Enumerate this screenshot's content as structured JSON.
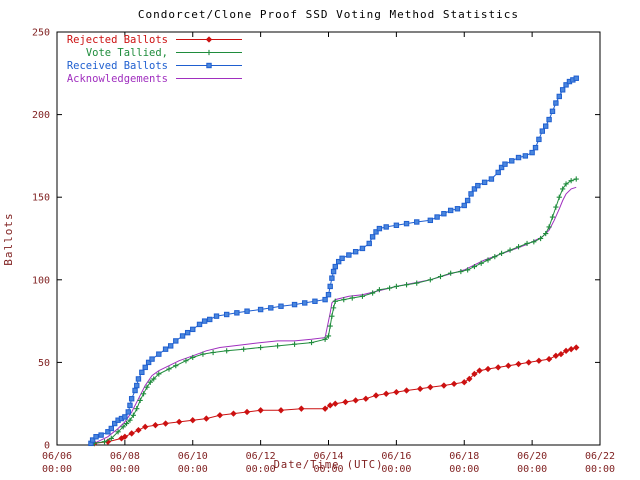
{
  "colors": {
    "axis": "#000000",
    "tick_label": "#7f1f1f",
    "background": "#ffffff"
  },
  "chart_data": {
    "type": "line",
    "title": "Condorcet/Clone Proof SSD Voting Method Statistics",
    "xlabel": "Date/Time (UTC)",
    "ylabel": "Ballots",
    "grid": false,
    "legend_position": "top-left",
    "xlim": [
      6,
      22
    ],
    "ylim": [
      0,
      250
    ],
    "x_unit": "day-of-june",
    "xticks": [
      {
        "value": 6,
        "label": "06/06",
        "sub": "00:00"
      },
      {
        "value": 8,
        "label": "06/08",
        "sub": "00:00"
      },
      {
        "value": 10,
        "label": "06/10",
        "sub": "00:00"
      },
      {
        "value": 12,
        "label": "06/12",
        "sub": "00:00"
      },
      {
        "value": 14,
        "label": "06/14",
        "sub": "00:00"
      },
      {
        "value": 16,
        "label": "06/16",
        "sub": "00:00"
      },
      {
        "value": 18,
        "label": "06/18",
        "sub": "00:00"
      },
      {
        "value": 20,
        "label": "06/20",
        "sub": "00:00"
      },
      {
        "value": 22,
        "label": "06/22",
        "sub": "00:00"
      }
    ],
    "yticks": [
      0,
      50,
      100,
      150,
      200,
      250
    ],
    "series": [
      {
        "name": "Rejected Ballots",
        "color": "#cc1111",
        "marker": "diamond",
        "marker_fill": "#cc1111",
        "points": [
          [
            7.1,
            1
          ],
          [
            7.5,
            2
          ],
          [
            7.9,
            4
          ],
          [
            8.0,
            5
          ],
          [
            8.2,
            7
          ],
          [
            8.4,
            9
          ],
          [
            8.6,
            11
          ],
          [
            8.9,
            12
          ],
          [
            9.2,
            13
          ],
          [
            9.6,
            14
          ],
          [
            10.0,
            15
          ],
          [
            10.4,
            16
          ],
          [
            10.8,
            18
          ],
          [
            11.2,
            19
          ],
          [
            11.6,
            20
          ],
          [
            12.0,
            21
          ],
          [
            12.6,
            21
          ],
          [
            13.2,
            22
          ],
          [
            13.9,
            22
          ],
          [
            14.05,
            24
          ],
          [
            14.2,
            25
          ],
          [
            14.5,
            26
          ],
          [
            14.8,
            27
          ],
          [
            15.1,
            28
          ],
          [
            15.4,
            30
          ],
          [
            15.7,
            31
          ],
          [
            16.0,
            32
          ],
          [
            16.3,
            33
          ],
          [
            16.7,
            34
          ],
          [
            17.0,
            35
          ],
          [
            17.4,
            36
          ],
          [
            17.7,
            37
          ],
          [
            18.0,
            38
          ],
          [
            18.15,
            40
          ],
          [
            18.3,
            43
          ],
          [
            18.45,
            45
          ],
          [
            18.7,
            46
          ],
          [
            19.0,
            47
          ],
          [
            19.3,
            48
          ],
          [
            19.6,
            49
          ],
          [
            19.9,
            50
          ],
          [
            20.2,
            51
          ],
          [
            20.5,
            52
          ],
          [
            20.7,
            54
          ],
          [
            20.85,
            55
          ],
          [
            21.0,
            57
          ],
          [
            21.15,
            58
          ],
          [
            21.3,
            59
          ]
        ]
      },
      {
        "name": "Vote Tallied,",
        "color": "#1f8c3c",
        "marker": "plus",
        "marker_fill": "none",
        "points": [
          [
            7.1,
            1
          ],
          [
            7.4,
            2
          ],
          [
            7.6,
            4
          ],
          [
            7.8,
            8
          ],
          [
            7.95,
            11
          ],
          [
            8.05,
            13
          ],
          [
            8.15,
            15
          ],
          [
            8.25,
            18
          ],
          [
            8.35,
            22
          ],
          [
            8.45,
            27
          ],
          [
            8.55,
            31
          ],
          [
            8.65,
            35
          ],
          [
            8.75,
            38
          ],
          [
            8.85,
            40
          ],
          [
            9.0,
            43
          ],
          [
            9.3,
            46
          ],
          [
            9.5,
            48
          ],
          [
            9.8,
            51
          ],
          [
            10.0,
            53
          ],
          [
            10.3,
            55
          ],
          [
            10.6,
            56
          ],
          [
            11.0,
            57
          ],
          [
            11.5,
            58
          ],
          [
            12.0,
            59
          ],
          [
            12.5,
            60
          ],
          [
            13.0,
            61
          ],
          [
            13.5,
            62
          ],
          [
            13.9,
            64
          ],
          [
            14.0,
            66
          ],
          [
            14.05,
            72
          ],
          [
            14.1,
            78
          ],
          [
            14.15,
            83
          ],
          [
            14.2,
            87
          ],
          [
            14.45,
            88
          ],
          [
            14.7,
            89
          ],
          [
            15.0,
            90
          ],
          [
            15.3,
            92
          ],
          [
            15.5,
            94
          ],
          [
            15.8,
            95
          ],
          [
            16.0,
            96
          ],
          [
            16.3,
            97
          ],
          [
            16.6,
            98
          ],
          [
            17.0,
            100
          ],
          [
            17.3,
            102
          ],
          [
            17.6,
            104
          ],
          [
            17.9,
            105
          ],
          [
            18.1,
            106
          ],
          [
            18.3,
            108
          ],
          [
            18.5,
            110
          ],
          [
            18.7,
            112
          ],
          [
            18.9,
            114
          ],
          [
            19.1,
            116
          ],
          [
            19.35,
            118
          ],
          [
            19.6,
            120
          ],
          [
            19.85,
            122
          ],
          [
            20.05,
            123
          ],
          [
            20.25,
            125
          ],
          [
            20.4,
            128
          ],
          [
            20.5,
            132
          ],
          [
            20.6,
            138
          ],
          [
            20.7,
            144
          ],
          [
            20.8,
            150
          ],
          [
            20.9,
            155
          ],
          [
            21.0,
            158
          ],
          [
            21.15,
            160
          ],
          [
            21.3,
            161
          ]
        ]
      },
      {
        "name": "Received Ballots",
        "color": "#1f5fd0",
        "marker": "square",
        "marker_fill": "#4a86dd",
        "points": [
          [
            7.0,
            1
          ],
          [
            7.05,
            3
          ],
          [
            7.15,
            5
          ],
          [
            7.3,
            6
          ],
          [
            7.5,
            8
          ],
          [
            7.6,
            10
          ],
          [
            7.7,
            13
          ],
          [
            7.8,
            15
          ],
          [
            7.9,
            16
          ],
          [
            8.0,
            17
          ],
          [
            8.1,
            20
          ],
          [
            8.15,
            24
          ],
          [
            8.2,
            28
          ],
          [
            8.3,
            33
          ],
          [
            8.35,
            36
          ],
          [
            8.4,
            40
          ],
          [
            8.5,
            44
          ],
          [
            8.6,
            47
          ],
          [
            8.7,
            50
          ],
          [
            8.8,
            52
          ],
          [
            9.0,
            55
          ],
          [
            9.2,
            58
          ],
          [
            9.35,
            60
          ],
          [
            9.5,
            63
          ],
          [
            9.7,
            66
          ],
          [
            9.85,
            68
          ],
          [
            10.0,
            70
          ],
          [
            10.2,
            73
          ],
          [
            10.35,
            75
          ],
          [
            10.5,
            76
          ],
          [
            10.7,
            78
          ],
          [
            11.0,
            79
          ],
          [
            11.3,
            80
          ],
          [
            11.6,
            81
          ],
          [
            12.0,
            82
          ],
          [
            12.3,
            83
          ],
          [
            12.6,
            84
          ],
          [
            13.0,
            85
          ],
          [
            13.3,
            86
          ],
          [
            13.6,
            87
          ],
          [
            13.9,
            88
          ],
          [
            14.0,
            91
          ],
          [
            14.05,
            96
          ],
          [
            14.1,
            101
          ],
          [
            14.15,
            105
          ],
          [
            14.2,
            108
          ],
          [
            14.3,
            111
          ],
          [
            14.4,
            113
          ],
          [
            14.6,
            115
          ],
          [
            14.8,
            117
          ],
          [
            15.0,
            119
          ],
          [
            15.2,
            122
          ],
          [
            15.3,
            126
          ],
          [
            15.4,
            129
          ],
          [
            15.5,
            131
          ],
          [
            15.7,
            132
          ],
          [
            16.0,
            133
          ],
          [
            16.3,
            134
          ],
          [
            16.6,
            135
          ],
          [
            17.0,
            136
          ],
          [
            17.2,
            138
          ],
          [
            17.4,
            140
          ],
          [
            17.6,
            142
          ],
          [
            17.8,
            143
          ],
          [
            18.0,
            145
          ],
          [
            18.1,
            148
          ],
          [
            18.2,
            152
          ],
          [
            18.3,
            155
          ],
          [
            18.4,
            157
          ],
          [
            18.6,
            159
          ],
          [
            18.8,
            161
          ],
          [
            19.0,
            165
          ],
          [
            19.1,
            168
          ],
          [
            19.2,
            170
          ],
          [
            19.4,
            172
          ],
          [
            19.6,
            174
          ],
          [
            19.8,
            175
          ],
          [
            20.0,
            177
          ],
          [
            20.1,
            180
          ],
          [
            20.2,
            185
          ],
          [
            20.3,
            190
          ],
          [
            20.4,
            193
          ],
          [
            20.5,
            197
          ],
          [
            20.6,
            202
          ],
          [
            20.7,
            207
          ],
          [
            20.8,
            211
          ],
          [
            20.9,
            215
          ],
          [
            21.0,
            218
          ],
          [
            21.1,
            220
          ],
          [
            21.2,
            221
          ],
          [
            21.3,
            222
          ]
        ]
      },
      {
        "name": "Acknowledgements",
        "color": "#a02fbf",
        "marker": "none",
        "marker_fill": "none",
        "points": [
          [
            7.1,
            1
          ],
          [
            7.5,
            5
          ],
          [
            7.8,
            10
          ],
          [
            8.0,
            14
          ],
          [
            8.2,
            20
          ],
          [
            8.4,
            28
          ],
          [
            8.6,
            36
          ],
          [
            8.8,
            42
          ],
          [
            9.0,
            45
          ],
          [
            9.3,
            48
          ],
          [
            9.6,
            51
          ],
          [
            10.0,
            54
          ],
          [
            10.4,
            57
          ],
          [
            10.8,
            59
          ],
          [
            11.2,
            60
          ],
          [
            11.6,
            61
          ],
          [
            12.0,
            62
          ],
          [
            12.5,
            63
          ],
          [
            13.0,
            63
          ],
          [
            13.5,
            64
          ],
          [
            13.9,
            65
          ],
          [
            14.05,
            80
          ],
          [
            14.1,
            86
          ],
          [
            14.2,
            88
          ],
          [
            14.6,
            90
          ],
          [
            15.0,
            91
          ],
          [
            15.4,
            93
          ],
          [
            15.8,
            95
          ],
          [
            16.0,
            96
          ],
          [
            16.5,
            98
          ],
          [
            17.0,
            100
          ],
          [
            17.5,
            103
          ],
          [
            18.0,
            106
          ],
          [
            18.3,
            109
          ],
          [
            18.6,
            112
          ],
          [
            19.0,
            115
          ],
          [
            19.4,
            118
          ],
          [
            19.8,
            121
          ],
          [
            20.0,
            123
          ],
          [
            20.3,
            126
          ],
          [
            20.5,
            130
          ],
          [
            20.65,
            136
          ],
          [
            20.8,
            143
          ],
          [
            20.9,
            148
          ],
          [
            21.0,
            152
          ],
          [
            21.15,
            155
          ],
          [
            21.3,
            156
          ]
        ]
      }
    ]
  }
}
